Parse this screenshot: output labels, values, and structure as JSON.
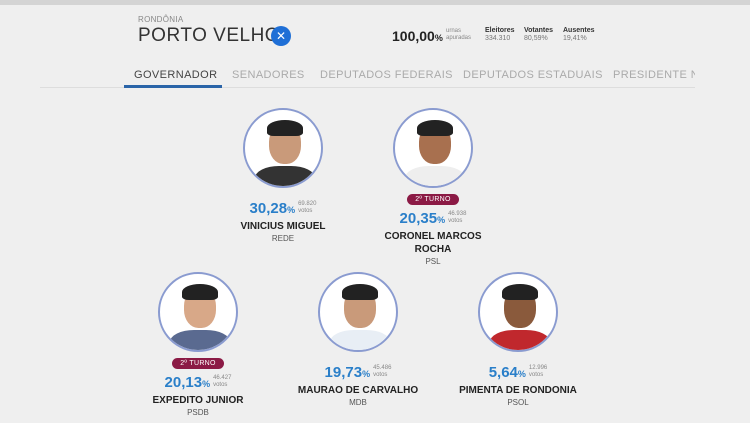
{
  "header": {
    "state": "RONDÔNIA",
    "city": "PORTO VELHO",
    "close_icon": "close-icon",
    "urnas_pct": "100,00",
    "pct_sign": "%",
    "urnas_label_1": "urnas",
    "urnas_label_2": "apuradas",
    "stats": [
      {
        "label": "Eleitores",
        "value": "334.310"
      },
      {
        "label": "Votantes",
        "value": "80,59%"
      },
      {
        "label": "Ausentes",
        "value": "19,41%"
      }
    ]
  },
  "tabs": [
    {
      "label": "GOVERNADOR",
      "active": true
    },
    {
      "label": "SENADORES"
    },
    {
      "label": "DEPUTADOS FEDERAIS"
    },
    {
      "label": "DEPUTADOS ESTADUAIS"
    },
    {
      "label": "PRESIDENTE NA"
    }
  ],
  "candidates": [
    {
      "name": "VINICIUS MIGUEL",
      "party": "REDE",
      "pct": "30,28",
      "votes": "69.820",
      "votes_label": "votos",
      "badge": ""
    },
    {
      "name": "CORONEL MARCOS ROCHA",
      "party": "PSL",
      "pct": "20,35",
      "votes": "46.938",
      "votes_label": "votos",
      "badge": "2º TURNO"
    },
    {
      "name": "EXPEDITO JUNIOR",
      "party": "PSDB",
      "pct": "20,13",
      "votes": "46.427",
      "votes_label": "votos",
      "badge": "2º TURNO"
    },
    {
      "name": "MAURAO DE CARVALHO",
      "party": "MDB",
      "pct": "19,73",
      "votes": "45.486",
      "votes_label": "votos",
      "badge": ""
    },
    {
      "name": "PIMENTA DE RONDONIA",
      "party": "PSOL",
      "pct": "5,64",
      "votes": "12.996",
      "votes_label": "votos",
      "badge": ""
    }
  ],
  "colors": {
    "accent": "#2a7fc9",
    "badge": "#8b1a45",
    "tab_underline": "#2a64a8",
    "close_button": "#1f6fd6"
  }
}
